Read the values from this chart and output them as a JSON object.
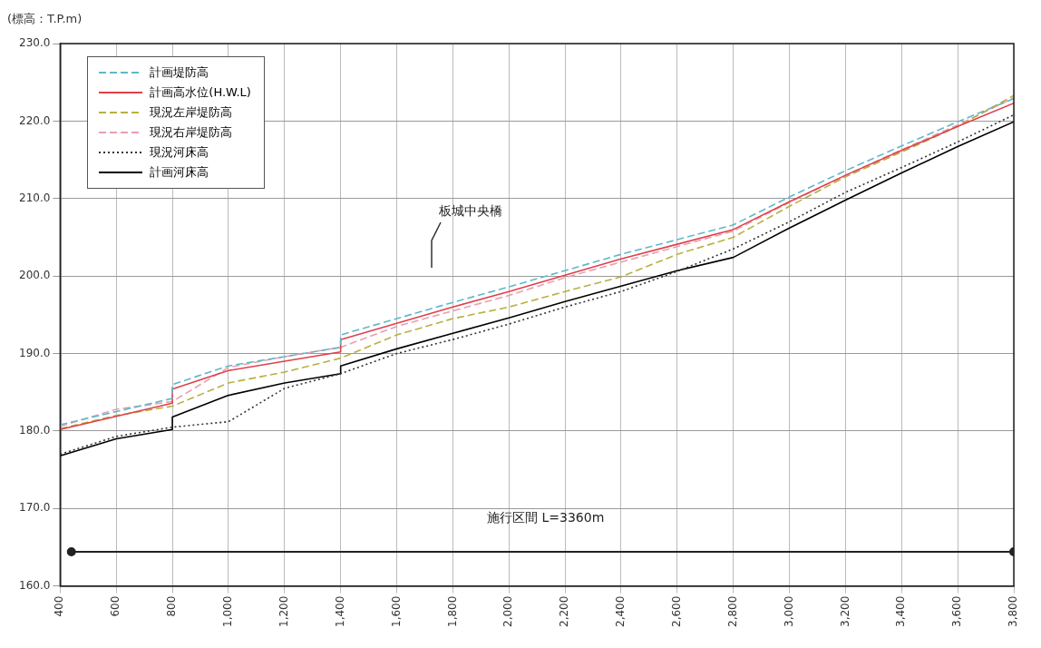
{
  "chart_data": {
    "type": "line",
    "ylabel": "(標高：T.P.m)",
    "xlim": [
      400,
      3800
    ],
    "xticks": [
      400,
      600,
      800,
      {
        "value": 1000,
        "label": "1,000"
      },
      {
        "value": 1200,
        "label": "1,200"
      },
      {
        "value": 1400,
        "label": "1,400"
      },
      {
        "value": 1600,
        "label": "1,600"
      },
      {
        "value": 1800,
        "label": "1,800"
      },
      {
        "value": 2000,
        "label": "2,000"
      },
      {
        "value": 2200,
        "label": "2,200"
      },
      {
        "value": 2400,
        "label": "2,400"
      },
      {
        "value": 2600,
        "label": "2,600"
      },
      {
        "value": 2800,
        "label": "2,800"
      },
      {
        "value": 3000,
        "label": "3,000"
      },
      {
        "value": 3200,
        "label": "3,200"
      },
      {
        "value": 3400,
        "label": "3,400"
      },
      {
        "value": 3600,
        "label": "3,600"
      },
      {
        "value": 3800,
        "label": "3,800"
      }
    ],
    "ylim": [
      160,
      230
    ],
    "yticks": [
      {
        "value": 160,
        "label": "160.0"
      },
      {
        "value": 170,
        "label": "170.0"
      },
      {
        "value": 180,
        "label": "180.0"
      },
      {
        "value": 190,
        "label": "190.0"
      },
      {
        "value": 200,
        "label": "200.0"
      },
      {
        "value": 210,
        "label": "210.0"
      },
      {
        "value": 220,
        "label": "220.0"
      },
      {
        "value": 230,
        "label": "230.0"
      }
    ],
    "grid": true,
    "legend": "top left",
    "marker": "none",
    "annotations": [
      "板城中央橋",
      "施行区間 L=3360m"
    ],
    "series": [
      {
        "name": "計画堤防高",
        "color": "#5fb8c8",
        "line_style": "dashed",
        "x": [
          400,
          600,
          800,
          800,
          1000,
          1200,
          1400,
          1400,
          1600,
          1800,
          2000,
          2200,
          2400,
          2600,
          2800,
          3000,
          3200,
          3400,
          3600,
          3800
        ],
        "values": [
          180.8,
          182.5,
          184.2,
          186.0,
          188.4,
          189.6,
          190.8,
          192.4,
          194.5,
          196.6,
          198.6,
          200.7,
          202.8,
          204.7,
          206.6,
          210.2,
          213.6,
          216.8,
          219.9,
          222.9
        ]
      },
      {
        "name": "計画高水位(H.W.L)",
        "color": "#e0404a",
        "line_style": "solid",
        "x": [
          400,
          600,
          800,
          800,
          1000,
          1200,
          1400,
          1400,
          1600,
          1800,
          2000,
          2200,
          2400,
          2600,
          2800,
          3000,
          3200,
          3400,
          3600,
          3800
        ],
        "values": [
          180.2,
          181.9,
          183.6,
          185.4,
          187.8,
          189.0,
          190.2,
          191.8,
          193.9,
          196.0,
          198.0,
          200.1,
          202.2,
          204.1,
          206.0,
          209.6,
          213.0,
          216.2,
          219.3,
          222.3
        ]
      },
      {
        "name": "現況左岸堤防高",
        "color": "#b8b040",
        "line_style": "dashed",
        "x": [
          400,
          600,
          800,
          1000,
          1200,
          1400,
          1600,
          1800,
          2000,
          2200,
          2400,
          2600,
          2800,
          3000,
          3200,
          3400,
          3600,
          3800
        ],
        "values": [
          180.3,
          182.0,
          183.2,
          186.2,
          187.6,
          189.4,
          192.4,
          194.5,
          196.0,
          198.0,
          199.9,
          202.8,
          205.0,
          209.0,
          212.8,
          216.0,
          219.3,
          223.3
        ]
      },
      {
        "name": "現況右岸堤防高",
        "color": "#e8a0b0",
        "line_style": "dashed",
        "x": [
          400,
          600,
          800,
          1000,
          1200,
          1400,
          1600,
          1800,
          2000,
          2200,
          2400,
          2600,
          2800,
          3000,
          3200,
          3400,
          3600,
          3800
        ],
        "values": [
          180.6,
          182.8,
          183.8,
          188.2,
          189.6,
          190.8,
          193.5,
          195.5,
          197.5,
          199.8,
          201.8,
          203.8,
          205.8,
          209.5,
          213.0,
          216.3,
          219.5,
          223.0
        ]
      },
      {
        "name": "現況河床高",
        "color": "#333333",
        "line_style": "dotted",
        "x": [
          400,
          600,
          800,
          1000,
          1200,
          1400,
          1600,
          1800,
          2000,
          2200,
          2400,
          2600,
          2800,
          3000,
          3200,
          3400,
          3600,
          3800
        ],
        "values": [
          177.0,
          179.3,
          180.5,
          181.2,
          185.5,
          187.4,
          190.0,
          191.8,
          193.8,
          196.0,
          198.0,
          200.6,
          203.5,
          207.0,
          210.8,
          214.0,
          217.3,
          220.8
        ]
      },
      {
        "color": "#222222",
        "line_style": "solid",
        "marker": "circle",
        "x": [
          440,
          3800
        ],
        "values": [
          164.4,
          164.4
        ]
      },
      {
        "name": "計画河床高",
        "color": "#000000",
        "line_style": "solid",
        "x": [
          400,
          600,
          800,
          800,
          1000,
          1200,
          1400,
          1400,
          1600,
          1800,
          2000,
          2200,
          2400,
          2600,
          2800,
          3000,
          3200,
          3400,
          3600,
          3800
        ],
        "values": [
          176.8,
          179.0,
          180.2,
          181.8,
          184.6,
          186.2,
          187.4,
          188.4,
          190.6,
          192.6,
          194.6,
          196.7,
          198.7,
          200.7,
          202.4,
          206.2,
          209.8,
          213.3,
          216.7,
          219.9
        ]
      }
    ]
  }
}
